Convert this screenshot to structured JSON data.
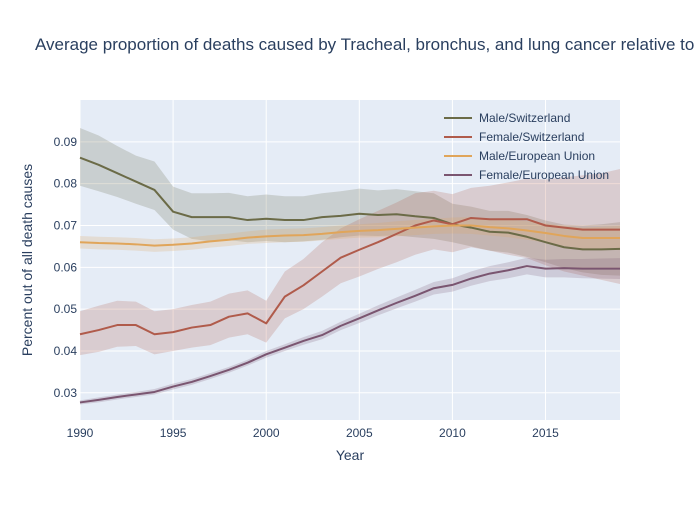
{
  "chart_data": {
    "type": "line",
    "title": "Average proportion of deaths caused by Tracheal, bronchus, and lung cancer relative to",
    "xlabel": "Year",
    "ylabel": "Percent out of all death causes",
    "xlim": [
      1990,
      2019
    ],
    "ylim": [
      0.0235,
      0.1
    ],
    "x_ticks": [
      1990,
      1995,
      2000,
      2005,
      2010,
      2015
    ],
    "y_ticks": [
      0.03,
      0.04,
      0.05,
      0.06,
      0.07,
      0.08,
      0.09
    ],
    "grid": true,
    "legend_position": "top-right",
    "x": [
      1990,
      1991,
      1992,
      1993,
      1994,
      1995,
      1996,
      1997,
      1998,
      1999,
      2000,
      2001,
      2002,
      2003,
      2004,
      2005,
      2006,
      2007,
      2008,
      2009,
      2010,
      2011,
      2012,
      2013,
      2014,
      2015,
      2016,
      2017,
      2018,
      2019
    ],
    "series": [
      {
        "name": "Male/Switzerland",
        "color": "#6b6b47",
        "values": [
          0.0862,
          0.0845,
          0.0825,
          0.0805,
          0.0785,
          0.0733,
          0.072,
          0.072,
          0.072,
          0.0713,
          0.0716,
          0.0713,
          0.0713,
          0.072,
          0.0723,
          0.0728,
          0.0725,
          0.0727,
          0.0722,
          0.0718,
          0.0703,
          0.0695,
          0.0685,
          0.0683,
          0.0673,
          0.066,
          0.0648,
          0.0643,
          0.0643,
          0.0644
        ],
        "lower": [
          0.0795,
          0.0782,
          0.0768,
          0.0752,
          0.0737,
          0.069,
          0.0668,
          0.0662,
          0.0665,
          0.066,
          0.0663,
          0.066,
          0.0662,
          0.0666,
          0.0672,
          0.0676,
          0.0675,
          0.0676,
          0.0672,
          0.0668,
          0.066,
          0.065,
          0.064,
          0.0635,
          0.0625,
          0.0612,
          0.0598,
          0.0588,
          0.0582,
          0.058
        ],
        "upper": [
          0.0933,
          0.0915,
          0.089,
          0.0867,
          0.0853,
          0.0793,
          0.0777,
          0.0777,
          0.0778,
          0.077,
          0.0774,
          0.077,
          0.077,
          0.0777,
          0.0782,
          0.0788,
          0.0784,
          0.0787,
          0.0782,
          0.0777,
          0.0752,
          0.0745,
          0.0735,
          0.0735,
          0.0725,
          0.0712,
          0.0702,
          0.07,
          0.0703,
          0.0708
        ]
      },
      {
        "name": "Female/Switzerland",
        "color": "#b05b4b",
        "values": [
          0.044,
          0.045,
          0.0462,
          0.0462,
          0.044,
          0.0445,
          0.0456,
          0.0462,
          0.0482,
          0.049,
          0.0466,
          0.053,
          0.0557,
          0.059,
          0.0623,
          0.0642,
          0.066,
          0.068,
          0.07,
          0.0712,
          0.0703,
          0.0718,
          0.0715,
          0.0715,
          0.0715,
          0.07,
          0.0695,
          0.069,
          0.069,
          0.069
        ],
        "lower": [
          0.039,
          0.0398,
          0.041,
          0.0412,
          0.0392,
          0.04,
          0.0408,
          0.0414,
          0.0432,
          0.044,
          0.042,
          0.0478,
          0.05,
          0.053,
          0.0562,
          0.0578,
          0.0596,
          0.0612,
          0.063,
          0.0643,
          0.0636,
          0.0648,
          0.064,
          0.063,
          0.0622,
          0.0605,
          0.059,
          0.058,
          0.057,
          0.056
        ],
        "upper": [
          0.0495,
          0.0508,
          0.052,
          0.0518,
          0.0495,
          0.05,
          0.051,
          0.0518,
          0.0537,
          0.0545,
          0.052,
          0.059,
          0.062,
          0.066,
          0.0693,
          0.0715,
          0.0735,
          0.0755,
          0.0777,
          0.0783,
          0.0775,
          0.079,
          0.0795,
          0.0803,
          0.0812,
          0.081,
          0.0815,
          0.082,
          0.0825,
          0.0835
        ]
      },
      {
        "name": "Male/European Union",
        "color": "#e0a55a",
        "values": [
          0.066,
          0.0658,
          0.0657,
          0.0655,
          0.0652,
          0.0654,
          0.0657,
          0.0662,
          0.0666,
          0.0671,
          0.0674,
          0.0676,
          0.0677,
          0.068,
          0.0684,
          0.0687,
          0.0689,
          0.0692,
          0.0695,
          0.0698,
          0.07,
          0.07,
          0.0696,
          0.0693,
          0.0688,
          0.0682,
          0.0675,
          0.067,
          0.067,
          0.067
        ],
        "lower": [
          0.0645,
          0.0643,
          0.0642,
          0.064,
          0.0637,
          0.0639,
          0.0642,
          0.0647,
          0.0651,
          0.0656,
          0.0658,
          0.066,
          0.0661,
          0.0664,
          0.0668,
          0.0671,
          0.0672,
          0.0674,
          0.0677,
          0.068,
          0.0681,
          0.068,
          0.0676,
          0.0672,
          0.0666,
          0.0659,
          0.0651,
          0.0645,
          0.0643,
          0.0641
        ],
        "upper": [
          0.0675,
          0.0673,
          0.0672,
          0.067,
          0.0667,
          0.0669,
          0.0672,
          0.0677,
          0.0681,
          0.0686,
          0.069,
          0.0692,
          0.0693,
          0.0696,
          0.07,
          0.0703,
          0.0706,
          0.071,
          0.0713,
          0.0716,
          0.0719,
          0.072,
          0.0716,
          0.0714,
          0.071,
          0.0705,
          0.0699,
          0.0695,
          0.0697,
          0.0699
        ]
      },
      {
        "name": "Female/European Union",
        "color": "#7a5570",
        "values": [
          0.0277,
          0.0283,
          0.029,
          0.0296,
          0.0302,
          0.0315,
          0.0326,
          0.034,
          0.0355,
          0.0372,
          0.0392,
          0.0408,
          0.0424,
          0.0438,
          0.046,
          0.0478,
          0.0497,
          0.0515,
          0.0532,
          0.055,
          0.0558,
          0.0573,
          0.0585,
          0.0593,
          0.0603,
          0.0597,
          0.0598,
          0.0597,
          0.0597,
          0.0597
        ],
        "lower": [
          0.0272,
          0.0277,
          0.0284,
          0.029,
          0.0296,
          0.0308,
          0.0319,
          0.0333,
          0.0348,
          0.0365,
          0.0384,
          0.04,
          0.0415,
          0.0428,
          0.045,
          0.0467,
          0.0485,
          0.0502,
          0.0518,
          0.0535,
          0.0542,
          0.0556,
          0.0567,
          0.0574,
          0.0583,
          0.0576,
          0.0576,
          0.0574,
          0.0573,
          0.0572
        ],
        "upper": [
          0.0282,
          0.0289,
          0.0296,
          0.0302,
          0.0309,
          0.0322,
          0.0333,
          0.0347,
          0.0362,
          0.0379,
          0.04,
          0.0416,
          0.0433,
          0.0448,
          0.047,
          0.0489,
          0.0509,
          0.0528,
          0.0546,
          0.0565,
          0.0574,
          0.059,
          0.0603,
          0.0612,
          0.0623,
          0.0618,
          0.062,
          0.062,
          0.0621,
          0.0622
        ]
      }
    ]
  }
}
